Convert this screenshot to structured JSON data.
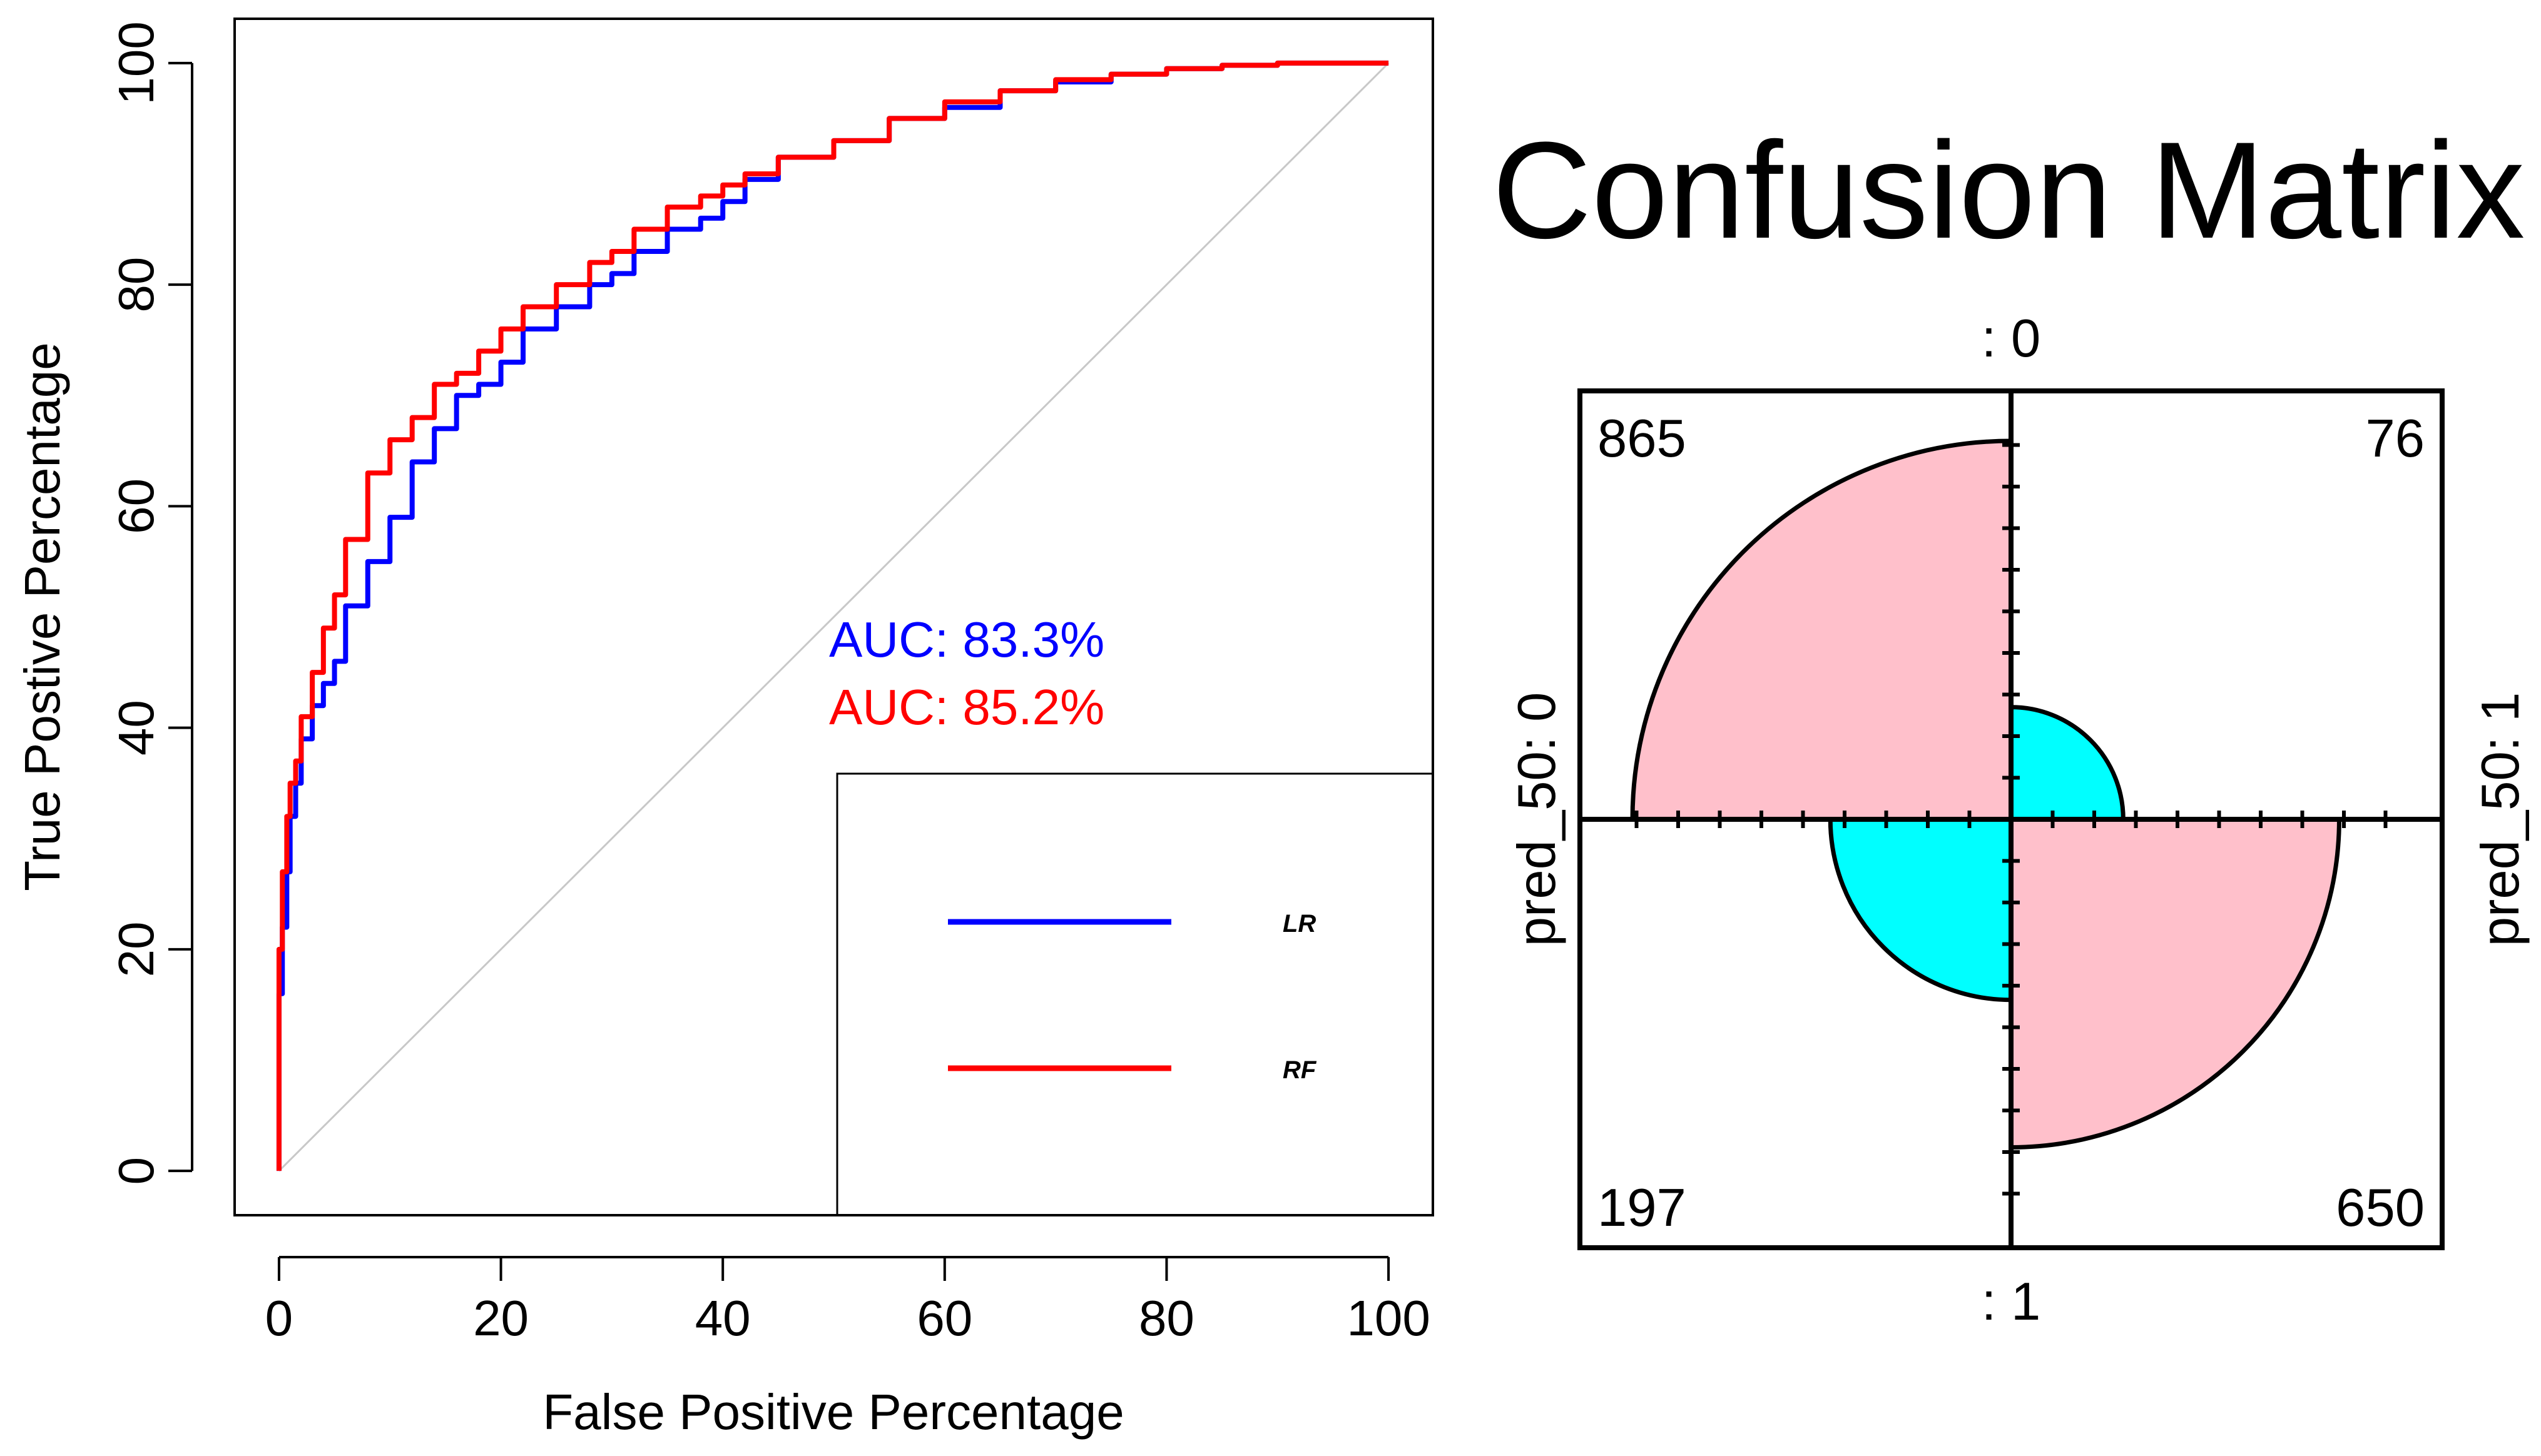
{
  "chart_data": [
    {
      "type": "line",
      "title": "",
      "xlabel": "False Positive Percentage",
      "ylabel": "True Postive Percentage",
      "xlim": [
        -4,
        104
      ],
      "ylim": [
        -4,
        104
      ],
      "x_ticks": [
        "0",
        "20",
        "40",
        "60",
        "80",
        "100"
      ],
      "y_ticks": [
        "0",
        "20",
        "40",
        "60",
        "80",
        "100"
      ],
      "grid": false,
      "diagonal_reference": {
        "x": [
          0,
          100
        ],
        "y": [
          0,
          100
        ],
        "color": "#c8c8c8"
      },
      "series": [
        {
          "name": "LR",
          "color": "#0000ff",
          "auc_label": "AUC: 83.3%",
          "x": [
            0,
            0,
            0.3,
            0.7,
            1,
            1.5,
            2,
            3,
            4,
            5,
            6,
            8,
            10,
            12,
            14,
            16,
            18,
            20,
            22,
            25,
            28,
            30,
            32,
            35,
            38,
            40,
            42,
            45,
            50,
            55,
            60,
            65,
            70,
            75,
            80,
            85,
            90,
            95,
            100
          ],
          "y": [
            0,
            9,
            16,
            22,
            27,
            32,
            35,
            39,
            42,
            44,
            46,
            51,
            55,
            59,
            64,
            67,
            70,
            71,
            73,
            76,
            78,
            80,
            81,
            83,
            85,
            86,
            87.5,
            89.5,
            91.5,
            93,
            95,
            96,
            97.5,
            98.3,
            99,
            99.5,
            99.8,
            100,
            100
          ]
        },
        {
          "name": "RF",
          "color": "#ff0000",
          "auc_label": "AUC: 85.2%",
          "x": [
            0,
            0,
            0.3,
            0.7,
            1,
            1.5,
            2,
            3,
            4,
            5,
            6,
            8,
            10,
            12,
            14,
            16,
            18,
            20,
            22,
            25,
            28,
            30,
            32,
            35,
            38,
            40,
            42,
            45,
            50,
            55,
            60,
            65,
            70,
            75,
            80,
            85,
            90,
            95,
            100
          ],
          "y": [
            0,
            13,
            20,
            27,
            32,
            35,
            37,
            41,
            45,
            49,
            52,
            57,
            63,
            66,
            68,
            71,
            72,
            74,
            76,
            78,
            80,
            82,
            83,
            85,
            87,
            88,
            89,
            90,
            91.5,
            93,
            95,
            96.5,
            97.5,
            98.5,
            99,
            99.5,
            99.8,
            100,
            100
          ]
        }
      ],
      "legend": {
        "placement": "bottom-right",
        "entries": [
          "LR",
          "RF"
        ]
      }
    },
    {
      "type": "fourfold",
      "title": "Confusion Matrix",
      "top_label": ": 0",
      "bottom_label": ": 1",
      "left_label": "pred_50: 0",
      "right_label": "pred_50: 1",
      "cells": [
        {
          "quadrant": "top-left",
          "value": 865,
          "label": "865",
          "color": "#ffc0cb"
        },
        {
          "quadrant": "top-right",
          "value": 76,
          "label": "76",
          "color": "#00ffff"
        },
        {
          "quadrant": "bottom-left",
          "value": 197,
          "label": "197",
          "color": "#00ffff"
        },
        {
          "quadrant": "bottom-right",
          "value": 650,
          "label": "650",
          "color": "#ffc0cb"
        }
      ]
    }
  ]
}
